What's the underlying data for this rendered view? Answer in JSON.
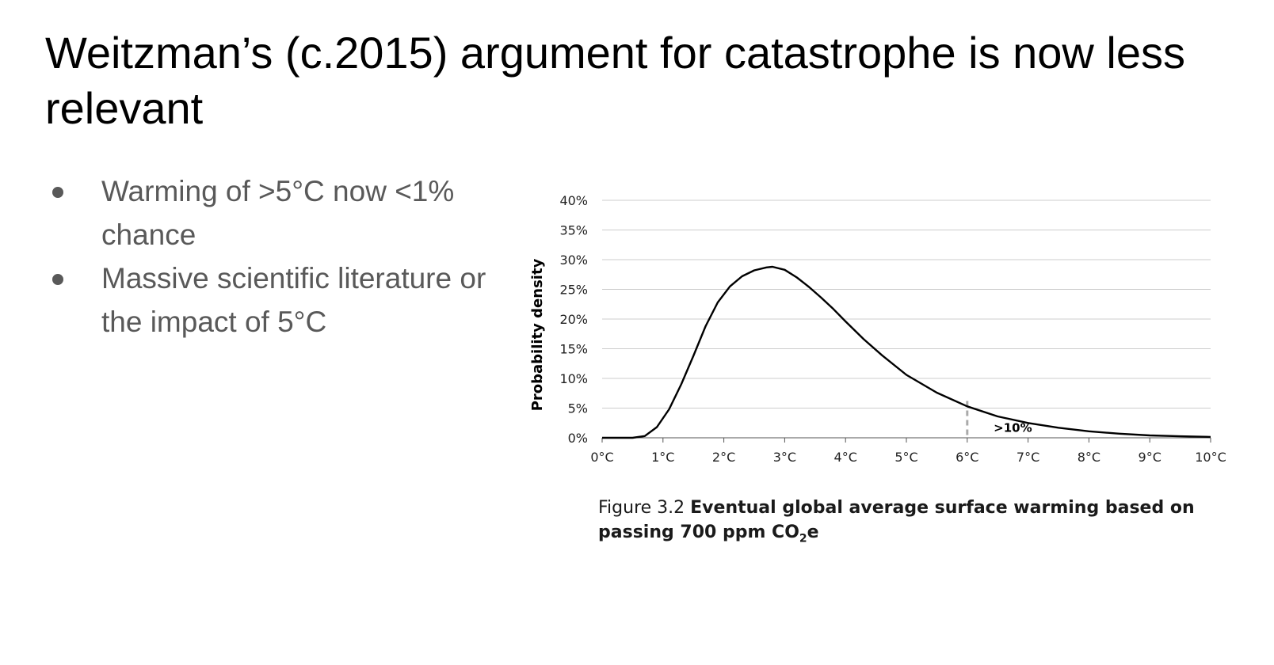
{
  "slide": {
    "title": "Weitzman’s (c.2015) argument for catastrophe is now less relevant",
    "bullets": [
      "Warming of >5°C now <1% chance",
      "Massive scientific literature or the impact of 5°C"
    ]
  },
  "caption": {
    "label": "Figure 3.2",
    "text_bold": "Eventual global average surface warming based on passing 700 ppm CO",
    "subscript": "2",
    "suffix": "e"
  },
  "chart_data": {
    "type": "area",
    "xlabel": "",
    "ylabel": "Probability density",
    "xlim": [
      0,
      10
    ],
    "ylim": [
      0,
      40
    ],
    "x_ticks": [
      "0°C",
      "1°C",
      "2°C",
      "3°C",
      "4°C",
      "5°C",
      "6°C",
      "7°C",
      "8°C",
      "9°C",
      "10°C"
    ],
    "y_ticks": [
      "0%",
      "5%",
      "10%",
      "15%",
      "20%",
      "25%",
      "30%",
      "35%",
      "40%"
    ],
    "grid": true,
    "series": [
      {
        "x": [
          0,
          0.5,
          0.7,
          0.9,
          1.1,
          1.3,
          1.5,
          1.7,
          1.9,
          2.1,
          2.3,
          2.5,
          2.7,
          2.8,
          3.0,
          3.2,
          3.4,
          3.6,
          3.8,
          4.0,
          4.3,
          4.6,
          5.0,
          5.5,
          6.0,
          6.5,
          7.0,
          7.5,
          8.0,
          8.5,
          9.0,
          9.5,
          10.0
        ],
        "y": [
          0,
          0,
          0.3,
          1.8,
          4.8,
          9.0,
          13.8,
          18.8,
          22.8,
          25.5,
          27.2,
          28.2,
          28.7,
          28.8,
          28.3,
          27.0,
          25.4,
          23.6,
          21.7,
          19.6,
          16.6,
          13.9,
          10.6,
          7.6,
          5.3,
          3.6,
          2.5,
          1.7,
          1.1,
          0.7,
          0.4,
          0.25,
          0.15
        ]
      }
    ],
    "annotation": {
      "x": 6,
      "text": ">10%"
    },
    "colors": {
      "line": "#000000",
      "grid": "#cccccc",
      "marker_line": "#aaaaaa"
    }
  }
}
